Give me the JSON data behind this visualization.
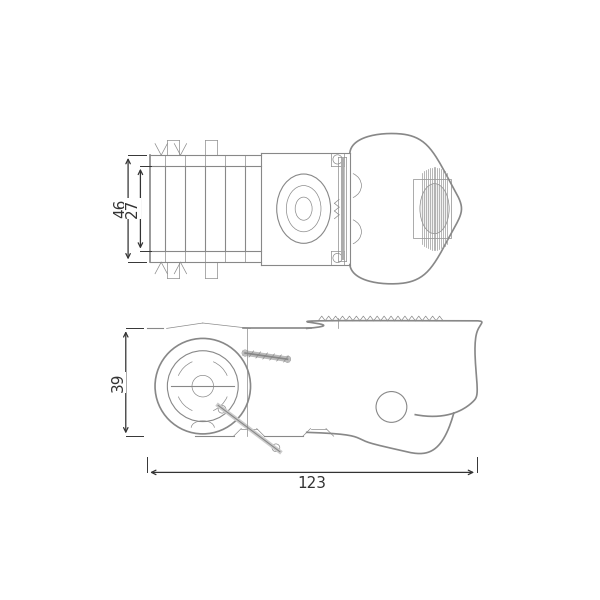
{
  "bg_color": "#ffffff",
  "line_color": "#888888",
  "dim_color": "#333333",
  "dim_46": "46",
  "dim_27": "27",
  "dim_39": "39",
  "dim_123": "123",
  "figsize": [
    6.0,
    6.0
  ],
  "dpi": 100
}
